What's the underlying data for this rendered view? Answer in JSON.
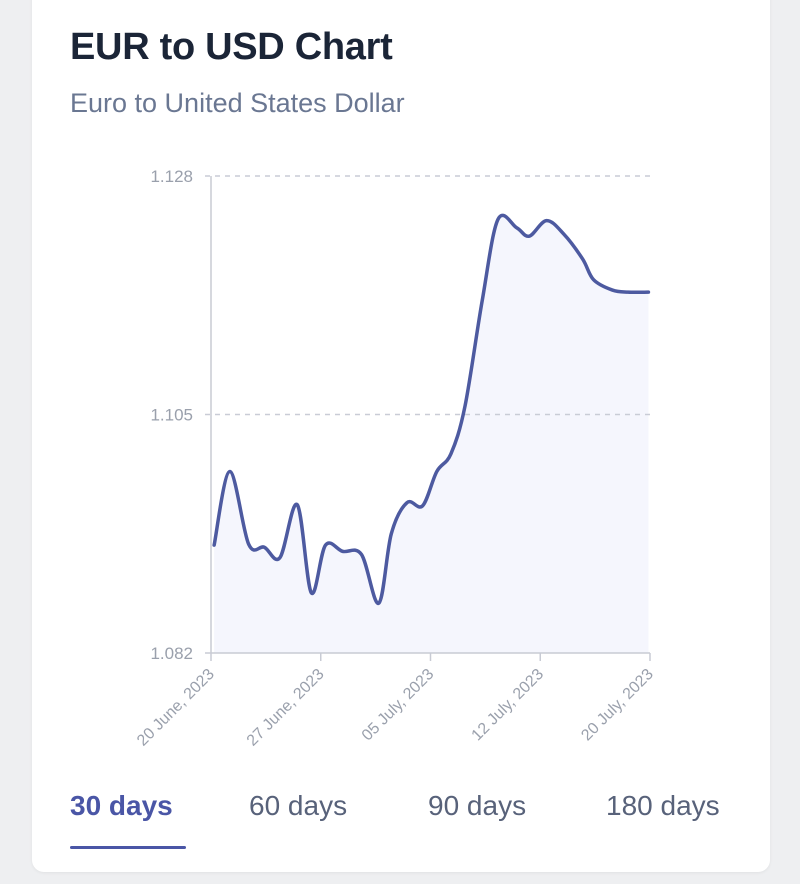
{
  "header": {
    "title": "EUR to USD Chart",
    "subtitle": "Euro to United States Dollar"
  },
  "tabs": [
    {
      "label": "30 days",
      "active": true
    },
    {
      "label": "60 days",
      "active": false
    },
    {
      "label": "90 days",
      "active": false
    },
    {
      "label": "180 days",
      "active": false
    }
  ],
  "colors": {
    "line": "#4d5aa0",
    "fill": "#f5f6fd",
    "grid": "#c9ccd6",
    "axis": "#c8cbd4",
    "tick_text": "#9aa0ac",
    "accent": "#4a56a6"
  },
  "chart_data": {
    "type": "area",
    "title": "EUR to USD Chart",
    "subtitle": "Euro to United States Dollar",
    "xlabel": "",
    "ylabel": "",
    "ylim": [
      1.082,
      1.128
    ],
    "yticks": [
      "1.082",
      "1.105",
      "1.128"
    ],
    "xticks": [
      {
        "label": "20 June, 2023",
        "day": 0
      },
      {
        "label": "27 June, 2023",
        "day": 7
      },
      {
        "label": "05 July, 2023",
        "day": 14
      },
      {
        "label": "12 July, 2023",
        "day": 21
      },
      {
        "label": "20 July, 2023",
        "day": 28
      }
    ],
    "xlim": [
      0,
      28
    ],
    "grid": "horizontal dashed",
    "legend": "none",
    "series": [
      {
        "x": [
          0.2,
          1.2,
          2.4,
          3.4,
          4.4,
          5.5,
          6.4,
          7.3,
          8.4,
          9.6,
          10.7,
          11.5,
          12.5,
          13.5,
          14.4,
          15.3,
          16.2,
          17.3,
          18.3,
          19.5,
          20.3,
          21.4,
          22.5,
          23.7,
          24.4,
          25.6,
          26.6,
          27.9
        ],
        "y": [
          1.0924,
          1.0995,
          1.0925,
          1.0922,
          1.0912,
          1.0963,
          1.0878,
          1.0924,
          1.0918,
          1.0915,
          1.0868,
          1.0935,
          1.0965,
          1.0962,
          1.0995,
          1.1012,
          1.1058,
          1.116,
          1.1238,
          1.123,
          1.1222,
          1.1237,
          1.1224,
          1.12,
          1.118,
          1.117,
          1.1168,
          1.1168
        ]
      }
    ]
  }
}
